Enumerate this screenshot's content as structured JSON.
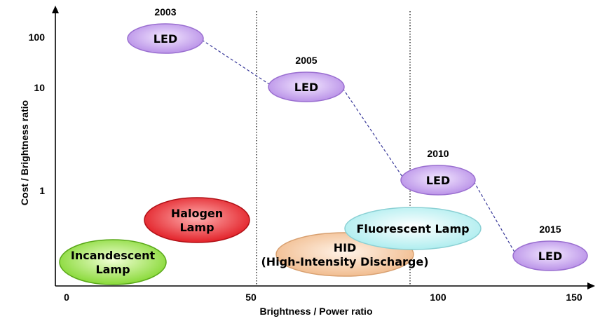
{
  "chart_data": {
    "type": "scatter",
    "xlabel": "Brightness / Power ratio",
    "ylabel": "Cost / Brightness ratio",
    "x_ticks": [
      "0",
      "50",
      "100",
      "150"
    ],
    "y_ticks": [
      "100",
      "10",
      "1"
    ],
    "vertical_reference_lines": [
      51,
      100
    ],
    "led_roadmap": [
      {
        "year": "2003",
        "label": "LED",
        "x": 27,
        "y": 100
      },
      {
        "year": "2005",
        "label": "LED",
        "x": 65,
        "y": 10
      },
      {
        "year": "2010",
        "label": "LED",
        "x": 100,
        "y": 1.5
      },
      {
        "year": "2015",
        "label": "LED",
        "x": 138,
        "y": 0.45
      }
    ],
    "technologies": [
      {
        "lines": [
          "Incandescent",
          "Lamp"
        ],
        "x": 13,
        "y": 0.45,
        "fill": "#8ee03a"
      },
      {
        "lines": [
          "Halogen",
          "Lamp"
        ],
        "x": 32,
        "y": 0.9,
        "fill": "#e8262c"
      },
      {
        "lines": [
          "HID",
          "(High-Intensity Discharge)"
        ],
        "x": 75,
        "y": 0.48,
        "fill": "#f5c9a0"
      },
      {
        "lines": [
          "Fluorescent Lamp"
        ],
        "x": 92,
        "y": 0.75,
        "fill": "#c7f4f4"
      }
    ],
    "colors": {
      "led": "#c79cf0",
      "connector": "#3a3a9a"
    }
  }
}
